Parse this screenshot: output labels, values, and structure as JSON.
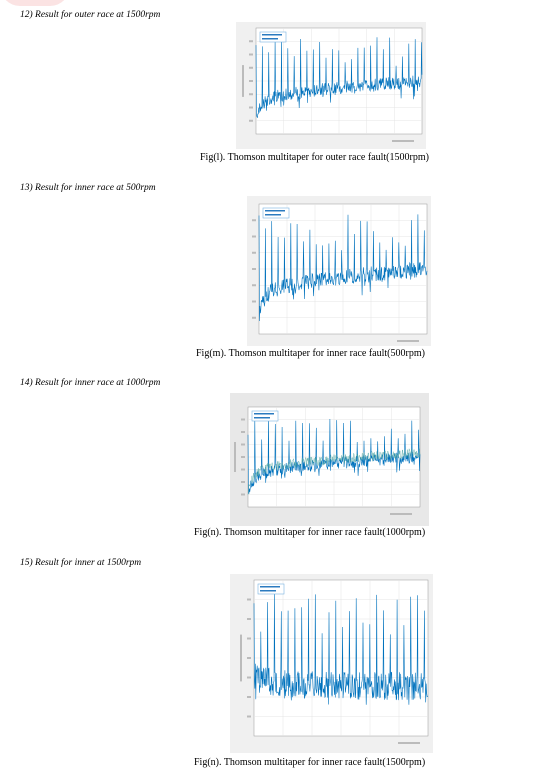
{
  "sections": [
    {
      "heading": "12)  Result for outer race at 1500rpm",
      "caption": "Fig(l). Thomson multitaper for outer race fault(1500rpm)"
    },
    {
      "heading": "13)  Result for inner race at 500rpm",
      "caption": "Fig(m). Thomson multitaper for inner race fault(500rpm)"
    },
    {
      "heading": "14)  Result for inner race at 1000rpm",
      "caption": "Fig(n). Thomson multitaper for inner race fault(1000rpm)"
    },
    {
      "heading": "15)  Result for inner at 1500rpm",
      "caption": "Fig(n). Thomson multitaper for inner race fault(1500rpm)"
    }
  ]
}
